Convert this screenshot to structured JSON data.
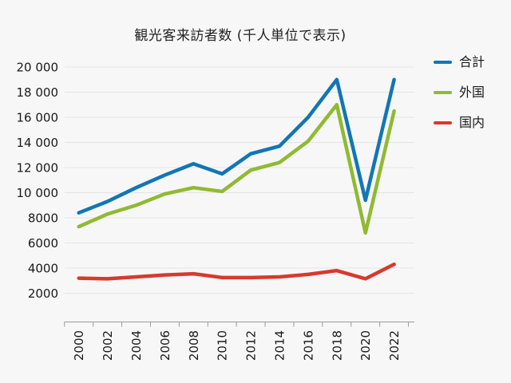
{
  "title": "観光客来訪者数 (千人単位で表示)",
  "chart_data": {
    "type": "line",
    "title": "観光客来訪者数 (千人単位で表示)",
    "categories": [
      "2000",
      "2002",
      "2004",
      "2006",
      "2008",
      "2010",
      "2012",
      "2014",
      "2016",
      "2018",
      "2020",
      "2022"
    ],
    "series": [
      {
        "name": "合計",
        "color": "#1276b4",
        "values": [
          8400,
          9300,
          10400,
          11400,
          12300,
          11500,
          13100,
          13700,
          16000,
          19000,
          9400,
          19000
        ]
      },
      {
        "name": "外国",
        "color": "#8fba32",
        "values": [
          7300,
          8300,
          9000,
          9900,
          10400,
          10100,
          11800,
          12400,
          14100,
          17000,
          6800,
          16500
        ]
      },
      {
        "name": "国内",
        "color": "#d63a2e",
        "values": [
          3200,
          3150,
          3300,
          3450,
          3550,
          3250,
          3250,
          3300,
          3500,
          3800,
          3150,
          4300
        ]
      }
    ],
    "xlabel": "",
    "ylabel": "",
    "ylim": [
      0,
      20000
    ],
    "ytick_step": 2000,
    "ytick_labels": [
      "20 000",
      "18 000",
      "16 000",
      "14 000",
      "12 000",
      "10 000",
      "8000",
      "6000",
      "4000",
      "2000"
    ],
    "grid": true,
    "legend_position": "right",
    "x_tick_label_rotation_deg": 90
  },
  "colors": {
    "background": "#f7f7f7",
    "gridline": "#e4e4e4",
    "axis": "#9a9a9a",
    "text": "#1a1a1a"
  }
}
